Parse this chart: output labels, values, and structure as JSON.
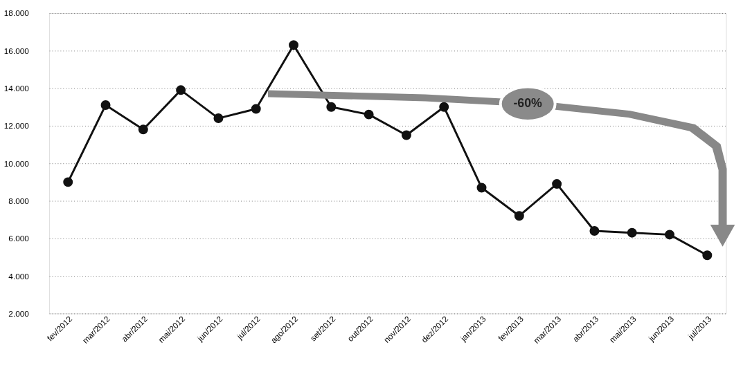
{
  "chart_data": {
    "type": "line",
    "categories": [
      "fev/2012",
      "mar/2012",
      "abr/2012",
      "mai/2012",
      "jun/2012",
      "jul/2012",
      "ago/2012",
      "set/2012",
      "out/2012",
      "nov/2012",
      "dez/2012",
      "jan/2013",
      "fev/2013",
      "mar/2013",
      "abr/2013",
      "mai/2013",
      "jun/2013",
      "jul/2013"
    ],
    "series": [
      {
        "color": "#111111",
        "values": [
          9000,
          13100,
          11800,
          13900,
          12400,
          12900,
          16300,
          13000,
          12600,
          11500,
          13000,
          8700,
          7200,
          8900,
          6400,
          6300,
          6200,
          5100
        ]
      }
    ],
    "ylim": [
      2000,
      18000
    ],
    "yticks": [
      {
        "value": 2000,
        "label": "2.000"
      },
      {
        "value": 4000,
        "label": "4.000"
      },
      {
        "value": 6000,
        "label": "6.000"
      },
      {
        "value": 8000,
        "label": "8.000"
      },
      {
        "value": 10000,
        "label": "10.000"
      },
      {
        "value": 12000,
        "label": "12.000"
      },
      {
        "value": 14000,
        "label": "14.000"
      },
      {
        "value": 16000,
        "label": "16.000"
      },
      {
        "value": 18000,
        "label": "18.000"
      }
    ],
    "grid": "y",
    "marker": "circle",
    "line_style": "solid",
    "annotations": [
      "-60%"
    ]
  }
}
